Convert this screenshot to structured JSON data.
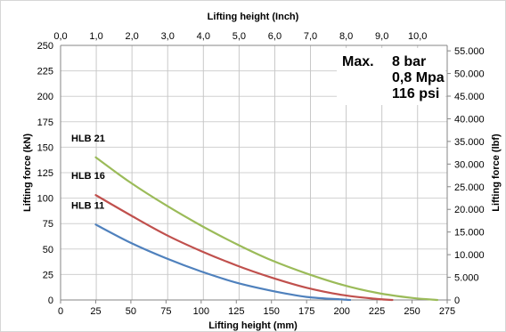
{
  "chart_data": {
    "type": "line",
    "xlabel_bottom": "Lifting height (mm)",
    "xlabel_top": "Lifting height (Inch)",
    "ylabel_left": "Lifting force (kN)",
    "ylabel_right": "Lifting force (lbf)",
    "x_bottom": {
      "lim": [
        0,
        275
      ],
      "ticks": [
        "0",
        "25",
        "50",
        "75",
        "100",
        "125",
        "150",
        "175",
        "200",
        "225",
        "250",
        "275"
      ]
    },
    "x_top": {
      "lim": [
        0,
        10.83
      ],
      "ticks": [
        "0,0",
        "1,0",
        "2,0",
        "3,0",
        "4,0",
        "5,0",
        "6,0",
        "7,0",
        "8,0",
        "9,0",
        "10,0"
      ]
    },
    "y_left": {
      "lim": [
        0,
        250
      ],
      "ticks": [
        "0",
        "25",
        "50",
        "75",
        "100",
        "125",
        "150",
        "175",
        "200",
        "225",
        "250"
      ]
    },
    "y_right": {
      "lim": [
        0,
        56202
      ],
      "ticks": [
        "0",
        "5.000",
        "10.000",
        "15.000",
        "20.000",
        "25.000",
        "30.000",
        "35.000",
        "40.000",
        "45.000",
        "50.000",
        "55.000"
      ]
    },
    "grid": true,
    "series": [
      {
        "name": "HLB 21",
        "color": "#9bbb59",
        "x": [
          25,
          50,
          75,
          100,
          125,
          150,
          175,
          200,
          225,
          250,
          268
        ],
        "y": [
          140,
          115,
          93,
          73,
          55,
          39,
          26,
          15,
          7,
          2,
          0
        ]
      },
      {
        "name": "HLB 16",
        "color": "#c0504d",
        "x": [
          25,
          50,
          75,
          100,
          125,
          150,
          175,
          200,
          225,
          236
        ],
        "y": [
          103,
          83,
          64,
          48,
          34,
          22,
          12,
          5,
          1,
          0
        ]
      },
      {
        "name": "HLB 11",
        "color": "#4f81bd",
        "x": [
          25,
          50,
          75,
          100,
          125,
          150,
          175,
          200,
          206
        ],
        "y": [
          74,
          56,
          41,
          28,
          17,
          9,
          3,
          0.5,
          0
        ]
      }
    ],
    "annotation": {
      "label": "Max.",
      "lines": [
        "8 bar",
        "0,8 Mpa",
        "116 psi"
      ]
    }
  }
}
